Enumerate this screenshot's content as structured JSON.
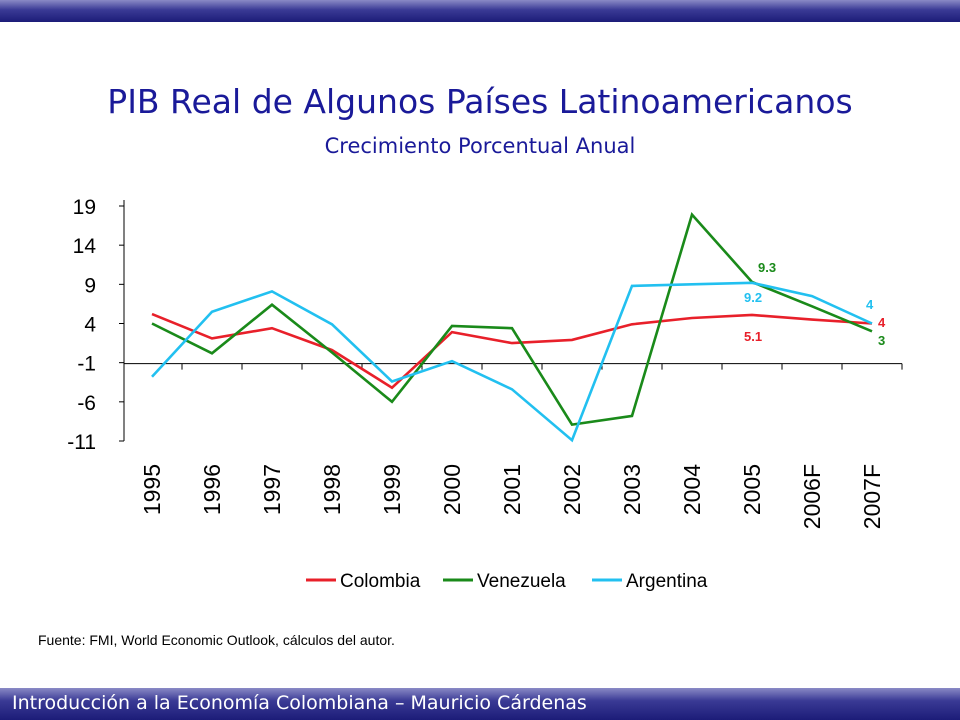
{
  "slide": {
    "title": "PIB Real de Algunos Países Latinoamericanos",
    "subtitle": "Crecimiento Porcentual Anual",
    "source": "Fuente: FMI, World Economic Outlook, cálculos del autor.",
    "footer": "Introducción a la Economía Colombiana – Mauricio Cárdenas",
    "colors": {
      "title": "#1a1a99",
      "bar": "#1c1c78"
    }
  },
  "chart_data": {
    "type": "line",
    "categories": [
      "1995",
      "1996",
      "1997",
      "1998",
      "1999",
      "2000",
      "2001",
      "2002",
      "2003",
      "2004",
      "2005",
      "2006F",
      "2007F"
    ],
    "yticks": [
      19,
      14,
      9,
      4,
      -1,
      -6,
      -11
    ],
    "ylim": [
      -11,
      19
    ],
    "legend_position": "bottom",
    "series": [
      {
        "name": "Colombia",
        "color": "#e8202a",
        "values": [
          5.2,
          2.1,
          3.4,
          0.6,
          -4.2,
          2.9,
          1.5,
          1.9,
          3.9,
          4.7,
          5.1,
          4.5,
          4.0
        ]
      },
      {
        "name": "Venezuela",
        "color": "#1a8a1a",
        "values": [
          4.0,
          0.2,
          6.4,
          0.3,
          -6.0,
          3.7,
          3.4,
          -8.9,
          -7.8,
          17.9,
          9.3,
          6.2,
          3.0
        ]
      },
      {
        "name": "Argentina",
        "color": "#22c0f0",
        "values": [
          -2.8,
          5.5,
          8.1,
          3.9,
          -3.4,
          -0.8,
          -4.4,
          -10.9,
          8.8,
          9.0,
          9.2,
          7.5,
          4.0
        ]
      }
    ],
    "annotations": [
      {
        "text": "9.3",
        "series": "Venezuela"
      },
      {
        "text": "9.2",
        "series": "Argentina"
      },
      {
        "text": "5.1",
        "series": "Colombia"
      },
      {
        "text": "4",
        "series": "Argentina"
      },
      {
        "text": "4",
        "series": "Colombia"
      },
      {
        "text": "3",
        "series": "Venezuela"
      }
    ]
  }
}
